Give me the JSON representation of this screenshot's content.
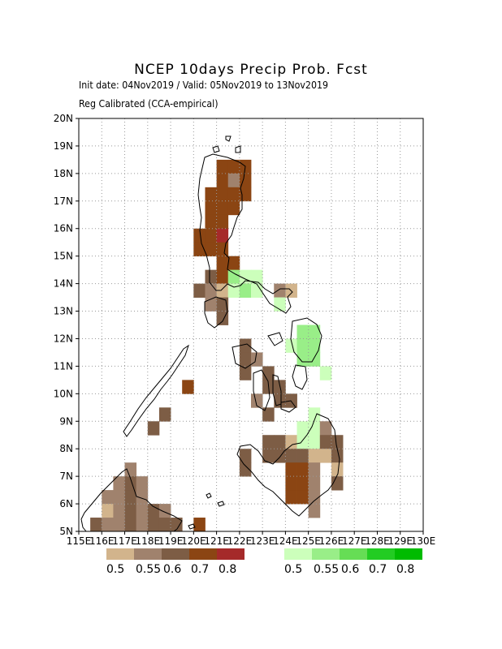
{
  "title": "NCEP 10days Precip Prob. Fcst",
  "subtitle_line1": "Init date: 04Nov2019 / Valid: 05Nov2019 to 13Nov2019",
  "subtitle_line2": "Reg Calibrated (CCA-empirical)",
  "lat_labels": [
    "5N",
    "6N",
    "7N",
    "8N",
    "9N",
    "10N",
    "11N",
    "12N",
    "13N",
    "14N",
    "15N",
    "16N",
    "17N",
    "18N",
    "19N",
    "20N"
  ],
  "lon_labels": [
    "115E",
    "116E",
    "117E",
    "118E",
    "119E",
    "120E",
    "121E",
    "122E",
    "123E",
    "124E",
    "125E",
    "126E",
    "127E",
    "128E",
    "129E",
    "130E"
  ],
  "legend_dry": {
    "labels": [
      "0.5",
      "0.55",
      "0.6",
      "0.7",
      "0.8"
    ],
    "colors": [
      "#d2b48c",
      "#a0826d",
      "#7d5d45",
      "#8b4513",
      "#a52a2a"
    ]
  },
  "legend_wet": {
    "labels": [
      "0.5",
      "0.55",
      "0.6",
      "0.7",
      "0.8"
    ],
    "colors": [
      "#ccffbb",
      "#99ee88",
      "#66dd55",
      "#22cc22",
      "#00bb00"
    ]
  },
  "grid_dotted": true,
  "map_data": {
    "lon_range": [
      115,
      130
    ],
    "lat_range": [
      5,
      20
    ],
    "cell_deg": 0.5,
    "cells": [
      {
        "lon": 121.0,
        "lat": 18.0,
        "c": "#8b4513"
      },
      {
        "lon": 121.5,
        "lat": 18.0,
        "c": "#8b4513"
      },
      {
        "lon": 122.0,
        "lat": 18.0,
        "c": "#8b4513"
      },
      {
        "lon": 121.0,
        "lat": 17.5,
        "c": "#8b4513"
      },
      {
        "lon": 121.5,
        "lat": 17.5,
        "c": "#a0826d"
      },
      {
        "lon": 122.0,
        "lat": 17.5,
        "c": "#8b4513"
      },
      {
        "lon": 120.5,
        "lat": 17.0,
        "c": "#8b4513"
      },
      {
        "lon": 121.0,
        "lat": 17.0,
        "c": "#8b4513"
      },
      {
        "lon": 121.5,
        "lat": 17.0,
        "c": "#8b4513"
      },
      {
        "lon": 122.0,
        "lat": 17.0,
        "c": "#8b4513"
      },
      {
        "lon": 120.5,
        "lat": 16.5,
        "c": "#8b4513"
      },
      {
        "lon": 121.0,
        "lat": 16.5,
        "c": "#8b4513"
      },
      {
        "lon": 121.5,
        "lat": 16.5,
        "c": "#8b4513"
      },
      {
        "lon": 120.5,
        "lat": 16.0,
        "c": "#8b4513"
      },
      {
        "lon": 121.0,
        "lat": 16.0,
        "c": "#8b4513"
      },
      {
        "lon": 120.0,
        "lat": 15.5,
        "c": "#8b4513"
      },
      {
        "lon": 120.5,
        "lat": 15.5,
        "c": "#8b4513"
      },
      {
        "lon": 121.0,
        "lat": 15.5,
        "c": "#a52a2a"
      },
      {
        "lon": 120.0,
        "lat": 15.0,
        "c": "#8b4513"
      },
      {
        "lon": 120.5,
        "lat": 15.0,
        "c": "#8b4513"
      },
      {
        "lon": 121.0,
        "lat": 15.0,
        "c": "#8b4513"
      },
      {
        "lon": 121.0,
        "lat": 14.5,
        "c": "#8b4513"
      },
      {
        "lon": 121.5,
        "lat": 14.5,
        "c": "#8b4513"
      },
      {
        "lon": 120.5,
        "lat": 14.0,
        "c": "#7d5d45"
      },
      {
        "lon": 121.0,
        "lat": 14.0,
        "c": "#8b4513"
      },
      {
        "lon": 121.5,
        "lat": 14.0,
        "c": "#99ee88"
      },
      {
        "lon": 122.0,
        "lat": 14.0,
        "c": "#ccffbb"
      },
      {
        "lon": 122.5,
        "lat": 14.0,
        "c": "#ccffbb"
      },
      {
        "lon": 120.0,
        "lat": 13.5,
        "c": "#7d5d45"
      },
      {
        "lon": 120.5,
        "lat": 13.5,
        "c": "#a0826d"
      },
      {
        "lon": 121.0,
        "lat": 13.5,
        "c": "#d2b48c"
      },
      {
        "lon": 121.5,
        "lat": 13.5,
        "c": "#ccffbb"
      },
      {
        "lon": 122.0,
        "lat": 13.5,
        "c": "#99ee88"
      },
      {
        "lon": 122.5,
        "lat": 13.5,
        "c": "#ccffbb"
      },
      {
        "lon": 123.5,
        "lat": 13.5,
        "c": "#a0826d"
      },
      {
        "lon": 124.0,
        "lat": 13.5,
        "c": "#d2b48c"
      },
      {
        "lon": 120.5,
        "lat": 13.0,
        "c": "#a0826d"
      },
      {
        "lon": 121.0,
        "lat": 13.0,
        "c": "#7d5d45"
      },
      {
        "lon": 123.5,
        "lat": 13.0,
        "c": "#ccffbb"
      },
      {
        "lon": 121.0,
        "lat": 12.5,
        "c": "#7d5d45"
      },
      {
        "lon": 124.5,
        "lat": 12.0,
        "c": "#99ee88"
      },
      {
        "lon": 125.0,
        "lat": 12.0,
        "c": "#99ee88"
      },
      {
        "lon": 122.0,
        "lat": 11.5,
        "c": "#7d5d45"
      },
      {
        "lon": 124.0,
        "lat": 11.5,
        "c": "#ccffbb"
      },
      {
        "lon": 124.5,
        "lat": 11.5,
        "c": "#99ee88"
      },
      {
        "lon": 125.0,
        "lat": 11.5,
        "c": "#99ee88"
      },
      {
        "lon": 122.0,
        "lat": 11.0,
        "c": "#7d5d45"
      },
      {
        "lon": 122.5,
        "lat": 11.0,
        "c": "#a0826d"
      },
      {
        "lon": 124.5,
        "lat": 11.0,
        "c": "#99ee88"
      },
      {
        "lon": 125.0,
        "lat": 11.0,
        "c": "#99ee88"
      },
      {
        "lon": 122.0,
        "lat": 10.5,
        "c": "#7d5d45"
      },
      {
        "lon": 123.0,
        "lat": 10.5,
        "c": "#7d5d45"
      },
      {
        "lon": 125.5,
        "lat": 10.5,
        "c": "#ccffbb"
      },
      {
        "lon": 119.5,
        "lat": 10.0,
        "c": "#8b4513"
      },
      {
        "lon": 123.0,
        "lat": 10.0,
        "c": "#7d5d45"
      },
      {
        "lon": 123.5,
        "lat": 10.0,
        "c": "#7d5d45"
      },
      {
        "lon": 122.5,
        "lat": 9.5,
        "c": "#a0826d"
      },
      {
        "lon": 123.5,
        "lat": 9.5,
        "c": "#7d5d45"
      },
      {
        "lon": 124.0,
        "lat": 9.5,
        "c": "#7d5d45"
      },
      {
        "lon": 118.5,
        "lat": 9.0,
        "c": "#7d5d45"
      },
      {
        "lon": 123.0,
        "lat": 9.0,
        "c": "#7d5d45"
      },
      {
        "lon": 125.0,
        "lat": 9.0,
        "c": "#ccffbb"
      },
      {
        "lon": 118.0,
        "lat": 8.5,
        "c": "#7d5d45"
      },
      {
        "lon": 124.5,
        "lat": 8.5,
        "c": "#ccffbb"
      },
      {
        "lon": 125.0,
        "lat": 8.5,
        "c": "#ccffbb"
      },
      {
        "lon": 125.5,
        "lat": 8.5,
        "c": "#a0826d"
      },
      {
        "lon": 123.0,
        "lat": 8.0,
        "c": "#7d5d45"
      },
      {
        "lon": 123.5,
        "lat": 8.0,
        "c": "#7d5d45"
      },
      {
        "lon": 124.0,
        "lat": 8.0,
        "c": "#d2b48c"
      },
      {
        "lon": 124.5,
        "lat": 8.0,
        "c": "#ccffbb"
      },
      {
        "lon": 125.0,
        "lat": 8.0,
        "c": "#ccffbb"
      },
      {
        "lon": 125.5,
        "lat": 8.0,
        "c": "#7d5d45"
      },
      {
        "lon": 126.0,
        "lat": 8.0,
        "c": "#7d5d45"
      },
      {
        "lon": 122.0,
        "lat": 7.5,
        "c": "#7d5d45"
      },
      {
        "lon": 123.0,
        "lat": 7.5,
        "c": "#7d5d45"
      },
      {
        "lon": 123.5,
        "lat": 7.5,
        "c": "#7d5d45"
      },
      {
        "lon": 124.0,
        "lat": 7.5,
        "c": "#7d5d45"
      },
      {
        "lon": 124.5,
        "lat": 7.5,
        "c": "#7d5d45"
      },
      {
        "lon": 125.0,
        "lat": 7.5,
        "c": "#d2b48c"
      },
      {
        "lon": 125.5,
        "lat": 7.5,
        "c": "#d2b48c"
      },
      {
        "lon": 126.0,
        "lat": 7.5,
        "c": "#7d5d45"
      },
      {
        "lon": 117.0,
        "lat": 7.0,
        "c": "#a0826d"
      },
      {
        "lon": 122.0,
        "lat": 7.0,
        "c": "#7d5d45"
      },
      {
        "lon": 124.0,
        "lat": 7.0,
        "c": "#8b4513"
      },
      {
        "lon": 124.5,
        "lat": 7.0,
        "c": "#8b4513"
      },
      {
        "lon": 125.0,
        "lat": 7.0,
        "c": "#a0826d"
      },
      {
        "lon": 126.0,
        "lat": 7.0,
        "c": "#d2b48c"
      },
      {
        "lon": 116.5,
        "lat": 6.5,
        "c": "#a0826d"
      },
      {
        "lon": 117.0,
        "lat": 6.5,
        "c": "#7d5d45"
      },
      {
        "lon": 117.5,
        "lat": 6.5,
        "c": "#a0826d"
      },
      {
        "lon": 124.0,
        "lat": 6.5,
        "c": "#8b4513"
      },
      {
        "lon": 124.5,
        "lat": 6.5,
        "c": "#8b4513"
      },
      {
        "lon": 125.0,
        "lat": 6.5,
        "c": "#a0826d"
      },
      {
        "lon": 126.0,
        "lat": 6.5,
        "c": "#7d5d45"
      },
      {
        "lon": 116.0,
        "lat": 6.0,
        "c": "#a0826d"
      },
      {
        "lon": 116.5,
        "lat": 6.0,
        "c": "#a0826d"
      },
      {
        "lon": 117.0,
        "lat": 6.0,
        "c": "#7d5d45"
      },
      {
        "lon": 117.5,
        "lat": 6.0,
        "c": "#a0826d"
      },
      {
        "lon": 124.0,
        "lat": 6.0,
        "c": "#8b4513"
      },
      {
        "lon": 124.5,
        "lat": 6.0,
        "c": "#8b4513"
      },
      {
        "lon": 125.0,
        "lat": 6.0,
        "c": "#a0826d"
      },
      {
        "lon": 116.0,
        "lat": 5.5,
        "c": "#d2b48c"
      },
      {
        "lon": 116.5,
        "lat": 5.5,
        "c": "#a0826d"
      },
      {
        "lon": 117.0,
        "lat": 5.5,
        "c": "#7d5d45"
      },
      {
        "lon": 117.5,
        "lat": 5.5,
        "c": "#a0826d"
      },
      {
        "lon": 118.0,
        "lat": 5.5,
        "c": "#7d5d45"
      },
      {
        "lon": 118.5,
        "lat": 5.5,
        "c": "#a0826d"
      },
      {
        "lon": 125.0,
        "lat": 5.5,
        "c": "#a0826d"
      },
      {
        "lon": 115.5,
        "lat": 5.0,
        "c": "#7d5d45"
      },
      {
        "lon": 116.0,
        "lat": 5.0,
        "c": "#a0826d"
      },
      {
        "lon": 116.5,
        "lat": 5.0,
        "c": "#a0826d"
      },
      {
        "lon": 117.0,
        "lat": 5.0,
        "c": "#7d5d45"
      },
      {
        "lon": 117.5,
        "lat": 5.0,
        "c": "#a0826d"
      },
      {
        "lon": 118.0,
        "lat": 5.0,
        "c": "#7d5d45"
      },
      {
        "lon": 118.5,
        "lat": 5.0,
        "c": "#7d5d45"
      },
      {
        "lon": 119.0,
        "lat": 5.0,
        "c": "#7d5d45"
      },
      {
        "lon": 120.0,
        "lat": 5.0,
        "c": "#8b4513"
      }
    ]
  }
}
